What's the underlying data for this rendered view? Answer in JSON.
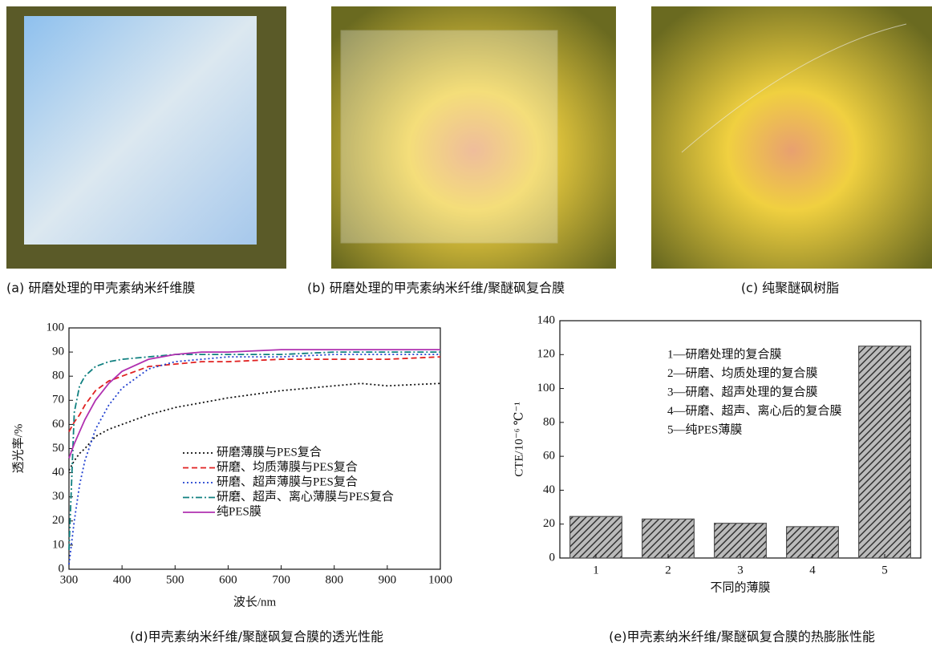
{
  "photos": [
    {
      "caption": "(a) 研磨处理的甲壳素纳米纤维膜"
    },
    {
      "caption": "(b) 研磨处理的甲壳素纳米纤维/聚醚砜复合膜"
    },
    {
      "caption": "(c) 纯聚醚砜树脂"
    }
  ],
  "chart_data": [
    {
      "type": "line",
      "caption": "(d)甲壳素纳米纤维/聚醚砜复合膜的透光性能",
      "xlabel": "波长/nm",
      "ylabel": "透光率/%",
      "x": [
        300,
        310,
        320,
        330,
        350,
        375,
        400,
        450,
        500,
        550,
        600,
        700,
        800,
        850,
        900,
        1000
      ],
      "series": [
        {
          "name": "研磨薄膜与PES复合",
          "color": "#111111",
          "linestyle": "dotted",
          "values": [
            41,
            45,
            48,
            50,
            55,
            58,
            60,
            64,
            67,
            69,
            71,
            74,
            76,
            77,
            76,
            77
          ]
        },
        {
          "name": "研磨、均质薄膜与PES复合",
          "color": "#e02020",
          "linestyle": "dashed",
          "values": [
            57,
            61,
            64,
            68,
            74,
            78,
            80,
            84,
            85,
            86,
            86,
            87,
            87,
            87,
            87,
            88
          ]
        },
        {
          "name": "研磨、超声薄膜与PES复合",
          "color": "#2040d0",
          "linestyle": "dotted",
          "values": [
            2,
            20,
            35,
            45,
            58,
            68,
            75,
            83,
            86,
            87,
            88,
            88,
            89,
            89,
            89,
            89
          ]
        },
        {
          "name": "研磨、超声、离心薄膜与PES复合",
          "color": "#108080",
          "linestyle": "dashdot",
          "values": [
            8,
            65,
            76,
            80,
            84,
            86,
            87,
            88,
            89,
            89,
            89,
            89,
            90,
            90,
            90,
            90
          ]
        },
        {
          "name": "纯PES膜",
          "color": "#b030b0",
          "linestyle": "solid",
          "values": [
            46,
            52,
            57,
            62,
            70,
            77,
            82,
            87,
            89,
            90,
            90,
            91,
            91,
            91,
            91,
            91
          ]
        }
      ],
      "xlim": [
        300,
        1000
      ],
      "xticks": [
        300,
        400,
        500,
        600,
        700,
        800,
        900,
        1000
      ],
      "ylim": [
        0,
        100
      ],
      "yticks": [
        0,
        10,
        20,
        30,
        40,
        50,
        60,
        70,
        80,
        90,
        100
      ]
    },
    {
      "type": "bar",
      "caption": "(e)甲壳素纳米纤维/聚醚砜复合膜的热膨胀性能",
      "xlabel": "不同的薄膜",
      "ylabel": "CTE/10⁻⁶ ℃⁻¹",
      "categories": [
        "1",
        "2",
        "3",
        "4",
        "5"
      ],
      "values": [
        24.5,
        23,
        20.5,
        18.5,
        125
      ],
      "color": "#555555",
      "annotations": [
        "1—研磨处理的复合膜",
        "2—研磨、均质处理的复合膜",
        "3—研磨、超声处理的复合膜",
        "4—研磨、超声、离心后的复合膜",
        "5—纯PES薄膜"
      ],
      "ylim": [
        0,
        140
      ],
      "yticks": [
        0,
        20,
        40,
        60,
        80,
        100,
        120,
        140
      ]
    }
  ]
}
